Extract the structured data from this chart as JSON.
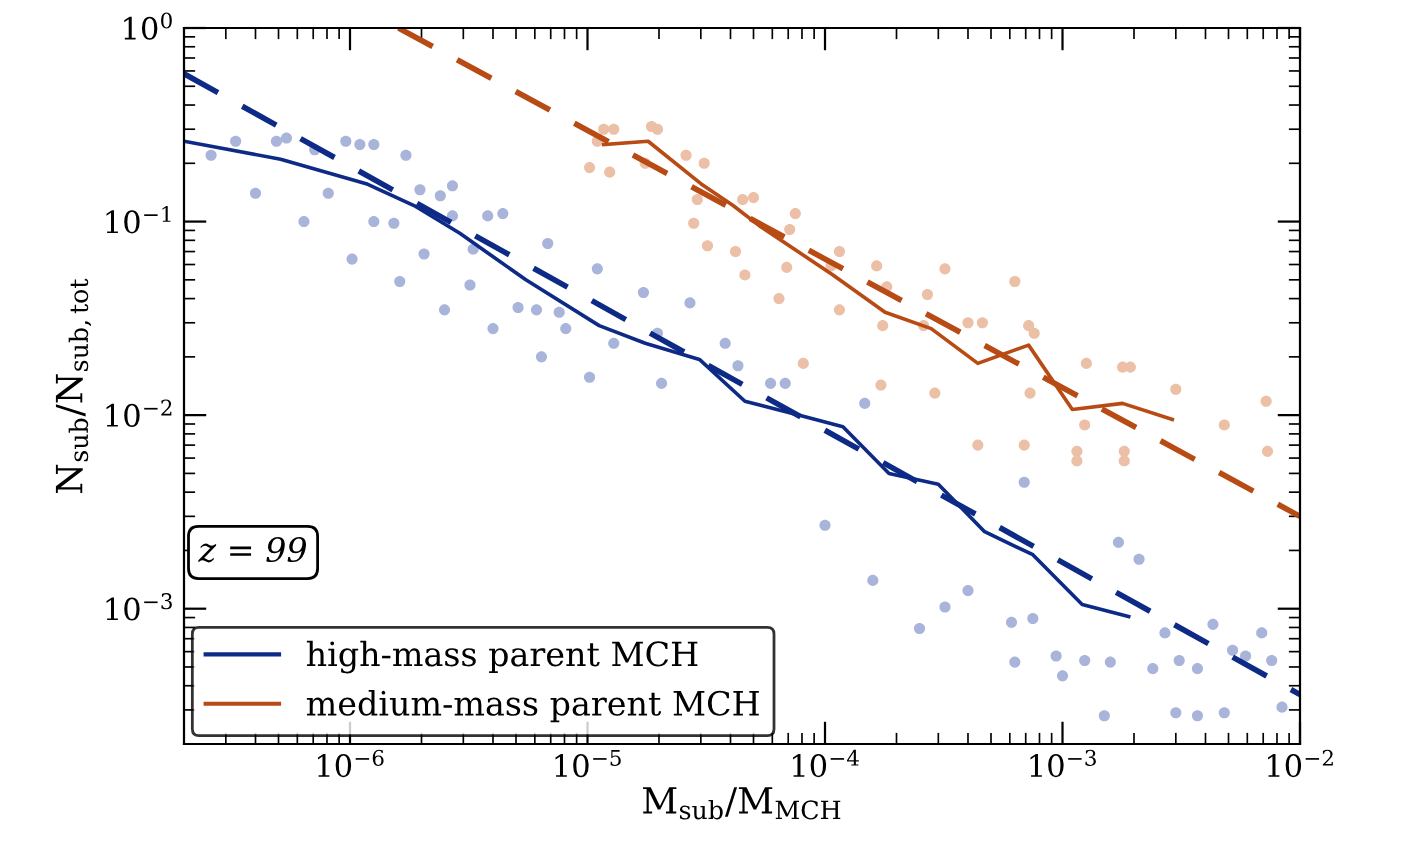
{
  "chart_data": {
    "type": "line",
    "xlabel": "M$_{sub}$/M$_{MCH}$",
    "ylabel": "N$_{sub}$/N$_{sub,tot}$",
    "log": "xy",
    "xlim": [
      2e-07,
      0.01
    ],
    "ylim": [
      0.0002,
      1
    ],
    "xticks": [
      {
        "value": 1e-06,
        "label": "10$^{−6}$"
      },
      {
        "value": 1e-05,
        "label": "10$^{−5}$"
      },
      {
        "value": 0.0001,
        "label": "10$^{−4}$"
      },
      {
        "value": 0.001,
        "label": "10$^{−3}$"
      },
      {
        "value": 0.01,
        "label": "10$^{−2}$"
      }
    ],
    "yticks": [
      {
        "value": 0.001,
        "label": "10$^{−3}$"
      },
      {
        "value": 0.01,
        "label": "10$^{−2}$"
      },
      {
        "value": 0.1,
        "label": "10$^{−1}$"
      },
      {
        "value": 1,
        "label": "10$^{0}$"
      }
    ],
    "grid": false,
    "legend": "bottom left",
    "annotations": [
      "z = 99"
    ],
    "series": [
      {
        "type": "scatter",
        "marker": "circle",
        "color": "#a9b4da",
        "x": [
          2.6e-07,
          3.3e-07,
          4e-07,
          4.9e-07,
          5.4e-07,
          6.4e-07,
          7.1e-07,
          8.1e-07,
          9.6e-07,
          1.02e-06,
          1.1e-06,
          1.26e-06,
          1.26e-06,
          1.53e-06,
          1.62e-06,
          1.72e-06,
          1.97e-06,
          2.05e-06,
          2.4e-06,
          2.5e-06,
          2.7e-06,
          2.7e-06,
          3.2e-06,
          3.3e-06,
          3.8e-06,
          4e-06,
          4.4e-06,
          5.1e-06,
          6.1e-06,
          6.4e-06,
          6.8e-06,
          7.6e-06,
          8.1e-06,
          1.02e-05,
          1.1e-05,
          1.29e-05,
          1.72e-05,
          1.97e-05,
          2.05e-05,
          2.7e-05,
          3.8e-05,
          4.3e-05,
          5.9e-05,
          6.8e-05,
          0.0001,
          0.000147,
          0.000159,
          0.00025,
          0.00032,
          0.0004,
          0.00061,
          0.00063,
          0.00075,
          0.00069,
          0.00094,
          0.001,
          0.00124,
          0.0015,
          0.00159,
          0.00172,
          0.0021,
          0.0024,
          0.0027,
          0.003,
          0.0031,
          0.0037,
          0.0037,
          0.0043,
          0.0048,
          0.0052,
          0.0059,
          0.0069,
          0.0076,
          0.0084
        ],
        "values": [
          0.22,
          0.26,
          0.14,
          0.26,
          0.27,
          0.1,
          0.235,
          0.14,
          0.26,
          0.064,
          0.25,
          0.25,
          0.1,
          0.098,
          0.049,
          0.22,
          0.146,
          0.068,
          0.136,
          0.035,
          0.153,
          0.107,
          0.047,
          0.072,
          0.107,
          0.028,
          0.11,
          0.036,
          0.035,
          0.02,
          0.077,
          0.034,
          0.028,
          0.0157,
          0.057,
          0.0235,
          0.043,
          0.0265,
          0.0146,
          0.038,
          0.0235,
          0.018,
          0.0146,
          0.0146,
          0.0027,
          0.0115,
          0.0014,
          0.00079,
          0.00102,
          0.00124,
          0.00085,
          0.00053,
          0.00089,
          0.0045,
          0.00057,
          0.00045,
          0.00054,
          0.00028,
          0.00053,
          0.0022,
          0.0018,
          0.00049,
          0.00075,
          0.00029,
          0.00054,
          0.00049,
          0.00028,
          0.00083,
          0.00029,
          0.00061,
          0.00057,
          0.00075,
          0.00054,
          0.00031
        ]
      },
      {
        "type": "scatter",
        "marker": "circle",
        "color": "#ebc0a6",
        "x": [
          1.02e-05,
          1.1e-05,
          1.17e-05,
          1.24e-05,
          1.29e-05,
          1.75e-05,
          1.86e-05,
          1.97e-05,
          2.6e-05,
          3.1e-05,
          2.9e-05,
          2.8e-05,
          3.2e-05,
          4.2e-05,
          4.5e-05,
          5e-05,
          4.6e-05,
          6.9e-05,
          6.4e-05,
          7.5e-05,
          7.1e-05,
          0.000115,
          0.000106,
          0.000115,
          0.000165,
          0.000182,
          0.000175,
          0.00027,
          0.00026,
          0.00032,
          0.0004,
          0.00046,
          0.00063,
          0.00072,
          0.00076,
          0.00126,
          0.00179,
          0.00193,
          0.003,
          0.000172,
          0.00029,
          8.1e-05,
          0.00044,
          0.00069,
          0.00073,
          0.00115,
          0.00115,
          0.00182,
          0.00182,
          0.00124,
          0.0048,
          0.0073,
          0.0072
        ],
        "values": [
          0.19,
          0.26,
          0.3,
          0.18,
          0.3,
          0.2,
          0.31,
          0.3,
          0.22,
          0.2,
          0.13,
          0.098,
          0.075,
          0.07,
          0.13,
          0.133,
          0.053,
          0.058,
          0.04,
          0.11,
          0.091,
          0.07,
          0.059,
          0.035,
          0.059,
          0.046,
          0.029,
          0.042,
          0.029,
          0.057,
          0.03,
          0.03,
          0.049,
          0.029,
          0.0265,
          0.0185,
          0.0177,
          0.0177,
          0.0136,
          0.0143,
          0.013,
          0.0185,
          0.007,
          0.007,
          0.013,
          0.0065,
          0.0058,
          0.0065,
          0.0058,
          0.0089,
          0.0089,
          0.0065,
          0.0118
        ]
      },
      {
        "line_style": "dashed",
        "color": "#0c2a86",
        "x": [
          2e-07,
          0.01
        ],
        "values": [
          0.58,
          0.00036
        ]
      },
      {
        "line_style": "dashed",
        "color": "#b84a14",
        "x": [
          1.6e-06,
          0.01
        ],
        "values": [
          1.0,
          0.003
        ]
      },
      {
        "line_style": "solid",
        "name": "high-mass parent MCH",
        "color": "#0c2a86",
        "x": [
          2e-07,
          5.1e-07,
          1.17e-06,
          1.86e-06,
          2.9e-06,
          5.5e-06,
          1.12e-05,
          1.75e-05,
          2.96e-05,
          4.6e-05,
          7.8e-05,
          0.000119,
          0.000186,
          0.0003,
          0.00047,
          0.00075,
          0.00121,
          0.0019
        ],
        "values": [
          0.26,
          0.21,
          0.157,
          0.121,
          0.087,
          0.05,
          0.029,
          0.0235,
          0.0194,
          0.0118,
          0.01,
          0.0087,
          0.005,
          0.0044,
          0.0025,
          0.0019,
          0.00105,
          0.00091
        ]
      },
      {
        "line_style": "solid",
        "name": "medium-mass parent MCH",
        "color": "#b84a14",
        "x": [
          1.17e-05,
          1.8e-05,
          3e-05,
          4.1e-05,
          5.3e-05,
          0.000108,
          0.000179,
          0.00028,
          0.00044,
          0.00072,
          0.0011,
          0.00179,
          0.0029
        ],
        "values": [
          0.25,
          0.26,
          0.157,
          0.121,
          0.095,
          0.053,
          0.034,
          0.028,
          0.0185,
          0.023,
          0.0107,
          0.0115,
          0.0095
        ]
      }
    ]
  }
}
